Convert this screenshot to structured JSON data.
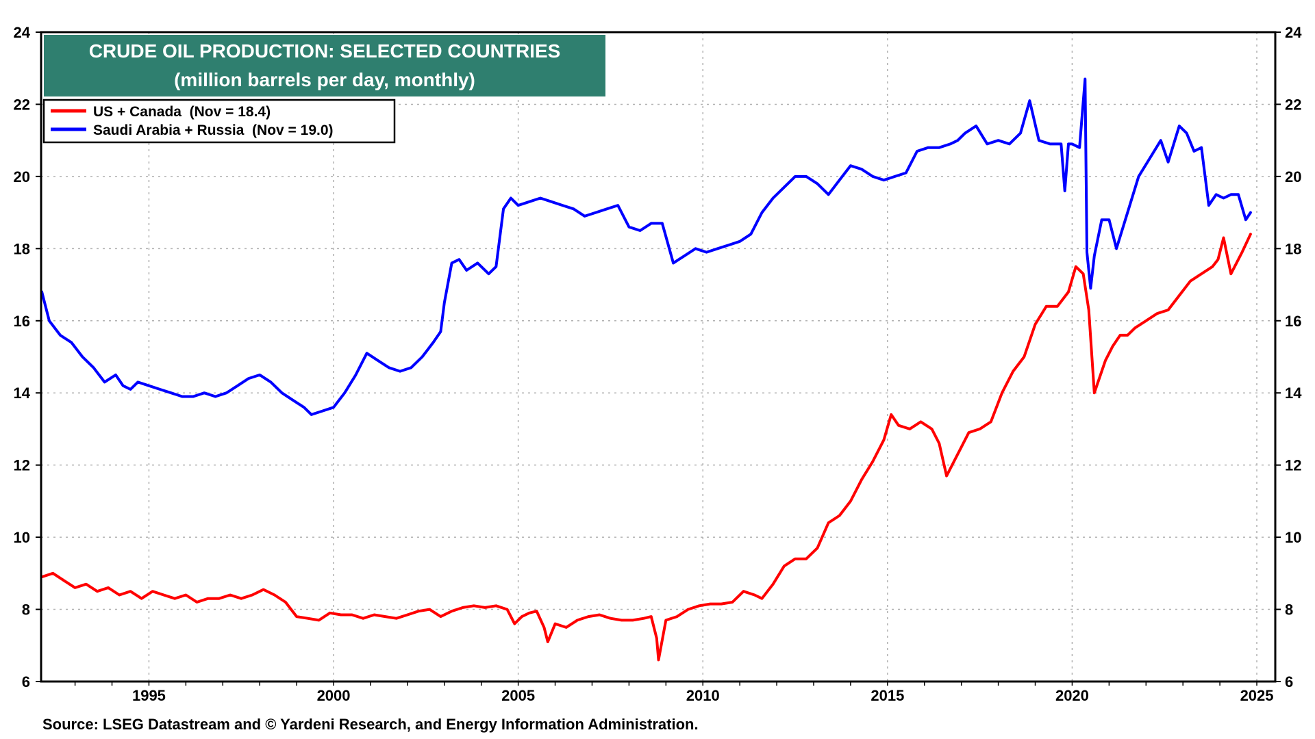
{
  "chart_data": {
    "type": "line",
    "title": "CRUDE OIL PRODUCTION: SELECTED COUNTRIES",
    "subtitle": "(million barrels per day, monthly)",
    "source": "Source: LSEG Datastream and © Yardeni Research, and Energy Information Administration.",
    "xlim": [
      1992.08,
      2025.5
    ],
    "ylim": [
      6,
      24
    ],
    "y_ticks": [
      6,
      8,
      10,
      12,
      14,
      16,
      18,
      20,
      22,
      24
    ],
    "x_ticks": [
      1995,
      2000,
      2005,
      2010,
      2015,
      2020,
      2025
    ],
    "grid": true,
    "legend_position": "top-left",
    "series": [
      {
        "name": "US + Canada  (Nov = 18.4)",
        "color": "#ff0000",
        "x": [
          1992.1,
          1992.4,
          1992.7,
          1993.0,
          1993.3,
          1993.6,
          1993.9,
          1994.2,
          1994.5,
          1994.8,
          1995.1,
          1995.4,
          1995.7,
          1996.0,
          1996.3,
          1996.6,
          1996.9,
          1997.2,
          1997.5,
          1997.8,
          1998.1,
          1998.4,
          1998.7,
          1999.0,
          1999.3,
          1999.6,
          1999.9,
          2000.2,
          2000.5,
          2000.8,
          2001.1,
          2001.4,
          2001.7,
          2002.0,
          2002.3,
          2002.6,
          2002.9,
          2003.2,
          2003.5,
          2003.8,
          2004.1,
          2004.4,
          2004.7,
          2004.9,
          2005.1,
          2005.3,
          2005.5,
          2005.7,
          2005.8,
          2006.0,
          2006.3,
          2006.6,
          2006.9,
          2007.2,
          2007.5,
          2007.8,
          2008.1,
          2008.4,
          2008.6,
          2008.75,
          2008.8,
          2009.0,
          2009.3,
          2009.6,
          2009.9,
          2010.2,
          2010.5,
          2010.8,
          2011.1,
          2011.4,
          2011.6,
          2011.9,
          2012.2,
          2012.5,
          2012.8,
          2013.1,
          2013.4,
          2013.7,
          2014.0,
          2014.3,
          2014.6,
          2014.9,
          2015.1,
          2015.3,
          2015.6,
          2015.9,
          2016.2,
          2016.4,
          2016.6,
          2016.9,
          2017.2,
          2017.5,
          2017.8,
          2018.1,
          2018.4,
          2018.7,
          2019.0,
          2019.3,
          2019.6,
          2019.9,
          2020.1,
          2020.3,
          2020.45,
          2020.6,
          2020.9,
          2021.1,
          2021.3,
          2021.5,
          2021.7,
          2022.0,
          2022.3,
          2022.6,
          2022.9,
          2023.2,
          2023.5,
          2023.8,
          2023.95,
          2024.1,
          2024.3,
          2024.6,
          2024.83
        ],
        "values": [
          8.9,
          9.0,
          8.8,
          8.6,
          8.7,
          8.5,
          8.6,
          8.4,
          8.5,
          8.3,
          8.5,
          8.4,
          8.3,
          8.4,
          8.2,
          8.3,
          8.3,
          8.4,
          8.3,
          8.4,
          8.55,
          8.4,
          8.2,
          7.8,
          7.75,
          7.7,
          7.9,
          7.85,
          7.85,
          7.75,
          7.85,
          7.8,
          7.75,
          7.85,
          7.95,
          8.0,
          7.8,
          7.95,
          8.05,
          8.1,
          8.05,
          8.1,
          8.0,
          7.6,
          7.8,
          7.9,
          7.95,
          7.5,
          7.1,
          7.6,
          7.5,
          7.7,
          7.8,
          7.85,
          7.75,
          7.7,
          7.7,
          7.75,
          7.8,
          7.2,
          6.6,
          7.7,
          7.8,
          8.0,
          8.1,
          8.15,
          8.15,
          8.2,
          8.5,
          8.4,
          8.3,
          8.7,
          9.2,
          9.4,
          9.4,
          9.7,
          10.4,
          10.6,
          11.0,
          11.6,
          12.1,
          12.7,
          13.4,
          13.1,
          13.0,
          13.2,
          13.0,
          12.6,
          11.7,
          12.3,
          12.9,
          13.0,
          13.2,
          14.0,
          14.6,
          15.0,
          15.9,
          16.4,
          16.4,
          16.8,
          17.5,
          17.3,
          16.3,
          14.0,
          14.9,
          15.3,
          15.6,
          15.6,
          15.8,
          16.0,
          16.2,
          16.3,
          16.7,
          17.1,
          17.3,
          17.5,
          17.7,
          18.3,
          17.3,
          17.9,
          18.4
        ]
      },
      {
        "name": "Saudi Arabia + Russia  (Nov = 19.0)",
        "color": "#0000ff",
        "x": [
          1992.1,
          1992.3,
          1992.6,
          1992.9,
          1993.2,
          1993.5,
          1993.8,
          1994.1,
          1994.3,
          1994.5,
          1994.7,
          1995.0,
          1995.3,
          1995.6,
          1995.9,
          1996.2,
          1996.5,
          1996.8,
          1997.1,
          1997.4,
          1997.7,
          1998.0,
          1998.3,
          1998.6,
          1998.9,
          1999.2,
          1999.4,
          1999.7,
          2000.0,
          2000.3,
          2000.6,
          2000.9,
          2001.2,
          2001.5,
          2001.8,
          2002.1,
          2002.4,
          2002.7,
          2002.9,
          2003.0,
          2003.2,
          2003.4,
          2003.6,
          2003.9,
          2004.2,
          2004.4,
          2004.6,
          2004.8,
          2005.0,
          2005.3,
          2005.6,
          2005.9,
          2006.2,
          2006.5,
          2006.8,
          2007.1,
          2007.4,
          2007.7,
          2008.0,
          2008.3,
          2008.6,
          2008.9,
          2009.2,
          2009.5,
          2009.8,
          2010.1,
          2010.4,
          2010.7,
          2011.0,
          2011.3,
          2011.6,
          2011.9,
          2012.2,
          2012.5,
          2012.8,
          2013.1,
          2013.4,
          2013.7,
          2014.0,
          2014.3,
          2014.6,
          2014.9,
          2015.2,
          2015.5,
          2015.8,
          2016.1,
          2016.4,
          2016.7,
          2016.9,
          2017.1,
          2017.4,
          2017.7,
          2018.0,
          2018.3,
          2018.6,
          2018.85,
          2019.1,
          2019.4,
          2019.7,
          2019.8,
          2019.9,
          2020.0,
          2020.2,
          2020.35,
          2020.4,
          2020.5,
          2020.6,
          2020.8,
          2021.0,
          2021.2,
          2021.5,
          2021.8,
          2022.1,
          2022.4,
          2022.6,
          2022.9,
          2023.1,
          2023.3,
          2023.5,
          2023.7,
          2023.9,
          2024.1,
          2024.3,
          2024.5,
          2024.7,
          2024.83
        ],
        "values": [
          16.8,
          16.0,
          15.6,
          15.4,
          15.0,
          14.7,
          14.3,
          14.5,
          14.2,
          14.1,
          14.3,
          14.2,
          14.1,
          14.0,
          13.9,
          13.9,
          14.0,
          13.9,
          14.0,
          14.2,
          14.4,
          14.5,
          14.3,
          14.0,
          13.8,
          13.6,
          13.4,
          13.5,
          13.6,
          14.0,
          14.5,
          15.1,
          14.9,
          14.7,
          14.6,
          14.7,
          15.0,
          15.4,
          15.7,
          16.5,
          17.6,
          17.7,
          17.4,
          17.6,
          17.3,
          17.5,
          19.1,
          19.4,
          19.2,
          19.3,
          19.4,
          19.3,
          19.2,
          19.1,
          18.9,
          19.0,
          19.1,
          19.2,
          18.6,
          18.5,
          18.7,
          18.7,
          17.6,
          17.8,
          18.0,
          17.9,
          18.0,
          18.1,
          18.2,
          18.4,
          19.0,
          19.4,
          19.7,
          20.0,
          20.0,
          19.8,
          19.5,
          19.9,
          20.3,
          20.2,
          20.0,
          19.9,
          20.0,
          20.1,
          20.7,
          20.8,
          20.8,
          20.9,
          21.0,
          21.2,
          21.4,
          20.9,
          21.0,
          20.9,
          21.2,
          22.1,
          21.0,
          20.9,
          20.9,
          19.6,
          20.9,
          20.9,
          20.8,
          22.7,
          17.9,
          16.9,
          17.8,
          18.8,
          18.8,
          18.0,
          19.0,
          20.0,
          20.5,
          21.0,
          20.4,
          21.4,
          21.2,
          20.7,
          20.8,
          19.2,
          19.5,
          19.4,
          19.5,
          19.5,
          18.8,
          19.0
        ]
      }
    ]
  }
}
